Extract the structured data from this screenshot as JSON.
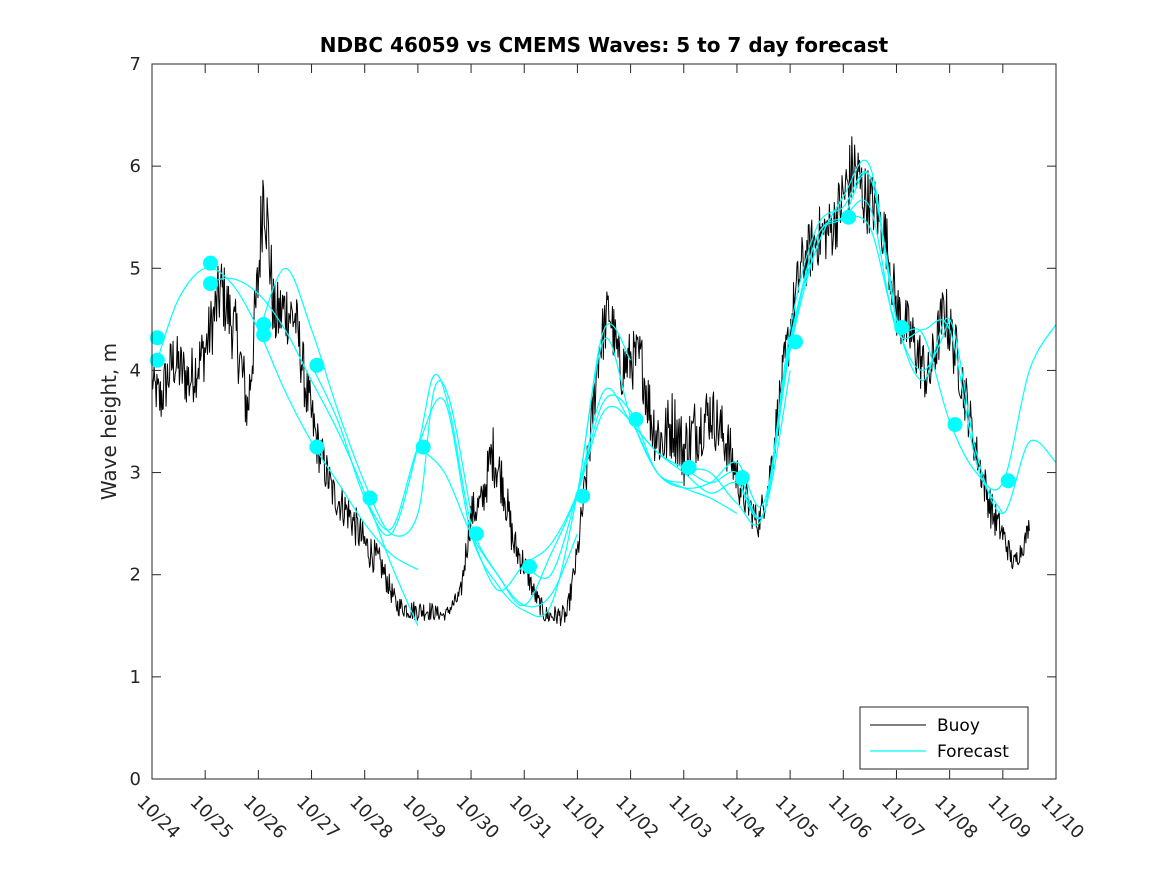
{
  "chart_data": {
    "type": "line",
    "title": "NDBC 46059 vs CMEMS Waves: 5 to 7 day forecast",
    "xlabel": "",
    "ylabel": "Wave height, m",
    "xlim": [
      0,
      17
    ],
    "ylim": [
      0,
      7
    ],
    "yticks": [
      0,
      1,
      2,
      3,
      4,
      5,
      6,
      7
    ],
    "xtick_labels": [
      "10/24",
      "10/25",
      "10/26",
      "10/27",
      "10/28",
      "10/29",
      "10/30",
      "10/31",
      "11/01",
      "11/02",
      "11/03",
      "11/04",
      "11/05",
      "11/06",
      "11/07",
      "11/08",
      "11/09",
      "11/10"
    ],
    "legend": {
      "location": "bottom-right",
      "entries": [
        "Buoy",
        "Forecast"
      ]
    },
    "colors": {
      "buoy": "#000000",
      "forecast": "#00ffff"
    },
    "buoy_anchors": {
      "x": [
        0.0,
        0.15,
        0.4,
        0.7,
        1.0,
        1.3,
        1.6,
        1.8,
        2.0,
        2.1,
        2.3,
        2.5,
        2.7,
        2.9,
        3.1,
        3.4,
        3.7,
        4.0,
        4.3,
        4.6,
        4.9,
        5.2,
        5.5,
        5.8,
        6.0,
        6.2,
        6.4,
        6.6,
        6.8,
        7.0,
        7.2,
        7.4,
        7.6,
        7.8,
        8.0,
        8.2,
        8.4,
        8.6,
        8.8,
        9.0,
        9.2,
        9.4,
        9.6,
        9.8,
        10.0,
        10.2,
        10.5,
        10.8,
        11.1,
        11.4,
        11.6,
        11.8,
        12.0,
        12.2,
        12.5,
        12.8,
        13.0,
        13.2,
        13.4,
        13.6,
        13.8,
        14.0,
        14.3,
        14.6,
        14.9,
        15.2,
        15.5,
        15.8,
        16.0,
        16.2,
        16.4,
        16.5
      ],
      "y": [
        3.9,
        3.7,
        4.1,
        3.9,
        4.2,
        4.8,
        4.3,
        3.6,
        4.9,
        5.9,
        4.5,
        4.6,
        4.5,
        3.8,
        3.3,
        2.8,
        2.6,
        2.3,
        2.1,
        1.7,
        1.65,
        1.65,
        1.6,
        1.8,
        2.6,
        2.7,
        3.2,
        2.9,
        2.3,
        2.1,
        1.8,
        1.6,
        1.6,
        1.6,
        2.2,
        3.1,
        4.2,
        4.6,
        4.0,
        4.1,
        4.1,
        3.5,
        3.3,
        3.5,
        3.2,
        3.4,
        3.6,
        3.3,
        2.8,
        2.5,
        2.9,
        3.7,
        4.4,
        5.0,
        5.3,
        5.4,
        5.7,
        6.0,
        5.7,
        5.6,
        5.3,
        4.6,
        4.3,
        3.9,
        4.6,
        4.0,
        3.2,
        2.6,
        2.4,
        2.1,
        2.3,
        2.5
      ],
      "amplitude": [
        0.15,
        0.3,
        0.3,
        0.3,
        0.3,
        0.35,
        0.35,
        0.35,
        0.4,
        0.5,
        0.35,
        0.35,
        0.3,
        0.3,
        0.25,
        0.2,
        0.2,
        0.2,
        0.15,
        0.1,
        0.1,
        0.1,
        0.05,
        0.1,
        0.2,
        0.2,
        0.3,
        0.25,
        0.2,
        0.15,
        0.1,
        0.1,
        0.1,
        0.1,
        0.15,
        0.25,
        0.3,
        0.3,
        0.3,
        0.3,
        0.3,
        0.35,
        0.35,
        0.35,
        0.35,
        0.35,
        0.3,
        0.3,
        0.2,
        0.15,
        0.2,
        0.25,
        0.3,
        0.3,
        0.3,
        0.3,
        0.35,
        0.4,
        0.35,
        0.3,
        0.3,
        0.3,
        0.3,
        0.3,
        0.3,
        0.3,
        0.2,
        0.2,
        0.15,
        0.1,
        0.1,
        0.1
      ]
    },
    "forecast_series": [
      {
        "name": "Forecast",
        "x": [
          0.1,
          0.5,
          1.0,
          1.5,
          2.0,
          2.5,
          3.0,
          3.5,
          4.0,
          4.5,
          5.0
        ],
        "y": [
          4.1,
          4.7,
          5.0,
          4.85,
          4.4,
          3.8,
          3.3,
          2.9,
          2.5,
          2.2,
          2.05
        ]
      },
      {
        "name": "Forecast",
        "x": [
          1.0,
          1.5,
          2.0,
          2.5,
          3.0,
          3.5,
          4.0,
          4.5,
          5.0
        ],
        "y": [
          4.85,
          4.9,
          4.75,
          4.4,
          3.9,
          3.4,
          2.8,
          2.1,
          1.5
        ]
      },
      {
        "name": "Forecast",
        "x": [
          2.0,
          2.5,
          3.0,
          3.5,
          4.0,
          4.5,
          5.0,
          5.3,
          5.6,
          6.0
        ],
        "y": [
          4.35,
          5.0,
          4.4,
          3.6,
          2.9,
          2.4,
          2.6,
          3.8,
          3.7,
          2.6
        ]
      },
      {
        "name": "Forecast",
        "x": [
          3.0,
          3.5,
          4.0,
          4.5,
          5.0,
          5.3,
          5.6,
          6.0,
          6.5,
          7.0,
          7.5,
          8.0
        ],
        "y": [
          4.05,
          3.5,
          2.75,
          2.4,
          3.25,
          3.95,
          3.6,
          2.5,
          2.0,
          1.7,
          1.8,
          2.4
        ]
      },
      {
        "name": "Forecast",
        "x": [
          4.0,
          4.5,
          5.0,
          5.5,
          6.0,
          6.5,
          7.0,
          7.5,
          8.0,
          8.5,
          9.0
        ],
        "y": [
          2.75,
          2.45,
          3.25,
          3.7,
          2.4,
          1.9,
          1.65,
          1.7,
          2.8,
          4.4,
          4.1
        ]
      },
      {
        "name": "Forecast",
        "x": [
          5.0,
          5.5,
          6.0,
          6.5,
          7.0,
          7.5,
          8.0,
          8.5,
          9.0,
          9.5,
          10.0
        ],
        "y": [
          3.25,
          3.0,
          2.4,
          2.0,
          1.7,
          2.2,
          2.8,
          3.7,
          3.6,
          3.0,
          2.9
        ]
      },
      {
        "name": "Forecast",
        "x": [
          6.0,
          6.5,
          7.0,
          7.5,
          8.0,
          8.5,
          9.0,
          9.5,
          10.0,
          10.5,
          11.0
        ],
        "y": [
          2.4,
          1.85,
          2.1,
          2.3,
          2.8,
          3.6,
          3.5,
          3.0,
          2.85,
          2.75,
          2.6
        ]
      },
      {
        "name": "Forecast",
        "x": [
          7.0,
          7.5,
          8.0,
          8.5,
          9.0,
          9.5,
          10.0,
          10.5,
          11.0,
          11.5,
          12.0
        ],
        "y": [
          2.1,
          2.0,
          2.8,
          3.8,
          3.5,
          3.2,
          3.0,
          2.8,
          2.9,
          2.6,
          4.0
        ]
      },
      {
        "name": "Forecast",
        "x": [
          8.0,
          8.5,
          9.0,
          9.5,
          10.0,
          10.5,
          11.0,
          11.5,
          12.0,
          12.5,
          13.0
        ],
        "y": [
          2.75,
          4.3,
          3.55,
          3.0,
          2.85,
          2.9,
          3.1,
          2.7,
          4.2,
          5.2,
          5.7
        ]
      },
      {
        "name": "Forecast",
        "x": [
          9.0,
          9.5,
          10.0,
          10.5,
          11.0,
          11.5,
          12.0,
          12.5,
          13.0,
          13.5,
          14.0
        ],
        "y": [
          3.5,
          3.2,
          3.05,
          3.0,
          2.7,
          2.6,
          4.4,
          5.4,
          5.6,
          5.9,
          4.5
        ]
      },
      {
        "name": "Forecast",
        "x": [
          10.0,
          10.5,
          11.0,
          11.5,
          12.0,
          12.5,
          13.0,
          13.5,
          14.0,
          14.5,
          15.0
        ],
        "y": [
          3.05,
          2.9,
          3.0,
          2.6,
          4.3,
          5.2,
          5.7,
          6.0,
          4.5,
          4.0,
          4.5
        ]
      },
      {
        "name": "Forecast",
        "x": [
          11.0,
          11.5,
          12.0,
          12.5,
          13.0,
          13.5,
          14.0,
          14.5,
          15.0,
          15.5,
          16.0
        ],
        "y": [
          2.95,
          2.6,
          4.25,
          5.3,
          5.5,
          5.6,
          4.4,
          4.4,
          4.4,
          3.1,
          2.6
        ]
      },
      {
        "name": "Forecast",
        "x": [
          12.0,
          12.5,
          13.0,
          13.5,
          14.0,
          14.5,
          15.0,
          15.5,
          16.0,
          16.5,
          17.0
        ],
        "y": [
          4.25,
          5.3,
          5.5,
          5.9,
          4.5,
          3.9,
          4.5,
          3.2,
          2.6,
          3.3,
          3.1
        ]
      },
      {
        "name": "Forecast",
        "x": [
          13.0,
          13.5,
          14.0,
          14.5,
          15.0,
          15.5,
          16.0,
          16.5,
          17.0
        ],
        "y": [
          5.5,
          5.4,
          4.45,
          4.35,
          3.5,
          3.0,
          2.9,
          4.0,
          4.45
        ]
      }
    ],
    "forecast_markers": {
      "x": [
        0.1,
        0.1,
        1.1,
        1.1,
        2.1,
        2.1,
        3.1,
        3.1,
        4.1,
        5.1,
        6.1,
        7.1,
        8.1,
        9.1,
        10.1,
        11.1,
        12.1,
        13.1,
        14.1,
        15.1,
        16.1
      ],
      "y": [
        4.1,
        4.32,
        5.05,
        4.85,
        4.45,
        4.35,
        4.05,
        3.25,
        2.75,
        3.25,
        2.4,
        2.08,
        2.77,
        3.52,
        3.05,
        2.95,
        4.28,
        5.5,
        4.42,
        3.47,
        2.92
      ]
    }
  }
}
